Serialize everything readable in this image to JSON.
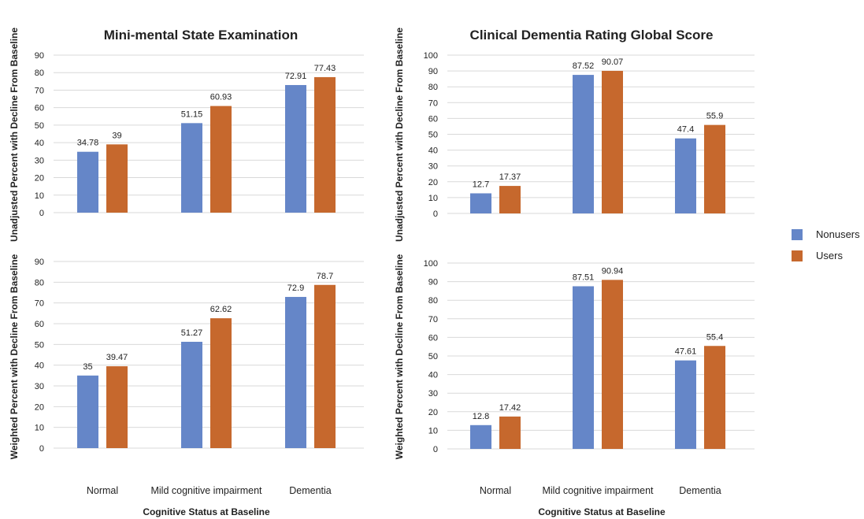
{
  "colors": {
    "nonusers": "#6586c8",
    "users": "#c6682d"
  },
  "legend": [
    {
      "key": "nonusers",
      "label": "Nonusers"
    },
    {
      "key": "users",
      "label": "Users"
    }
  ],
  "columns": [
    {
      "title": "Mini-mental State Examination",
      "xlabel": "Cognitive Status at Baseline"
    },
    {
      "title": "Clinical Dementia Rating Global Score",
      "xlabel": "Cognitive Status at Baseline"
    }
  ],
  "chart_data": [
    {
      "type": "bar",
      "title": "Mini-mental State Examination",
      "ylabel": "Unadjusted Percent with Decline From Baseline",
      "xlabel": "",
      "categories": [
        "Normal",
        "Mild cognitive impairment",
        "Dementia"
      ],
      "ylim": [
        0,
        90
      ],
      "ytick_step": 10,
      "grid": true,
      "series": [
        {
          "name": "Nonusers",
          "values": [
            34.78,
            51.15,
            72.91
          ]
        },
        {
          "name": "Users",
          "values": [
            39,
            60.93,
            77.43
          ]
        }
      ]
    },
    {
      "type": "bar",
      "title": "Clinical Dementia Rating Global Score",
      "ylabel": "Unadjusted Percent with Decline From Baseline",
      "xlabel": "",
      "categories": [
        "Normal",
        "Mild cognitive impairment",
        "Dementia"
      ],
      "ylim": [
        0,
        100
      ],
      "ytick_step": 10,
      "grid": true,
      "series": [
        {
          "name": "Nonusers",
          "values": [
            12.7,
            87.52,
            47.4
          ]
        },
        {
          "name": "Users",
          "values": [
            17.37,
            90.07,
            55.9
          ]
        }
      ]
    },
    {
      "type": "bar",
      "title": "",
      "ylabel": "Weighted  Percent with Decline From Baseline",
      "xlabel": "Cognitive Status at Baseline",
      "categories": [
        "Normal",
        "Mild cognitive impairment",
        "Dementia"
      ],
      "ylim": [
        0,
        90
      ],
      "ytick_step": 10,
      "grid": true,
      "series": [
        {
          "name": "Nonusers",
          "values": [
            35,
            51.27,
            72.9
          ]
        },
        {
          "name": "Users",
          "values": [
            39.47,
            62.62,
            78.7
          ]
        }
      ]
    },
    {
      "type": "bar",
      "title": "",
      "ylabel": "Weighted  Percent with Decline From Baseline",
      "xlabel": "Cognitive Status at Baseline",
      "categories": [
        "Normal",
        "Mild cognitive impairment",
        "Dementia"
      ],
      "ylim": [
        0,
        100
      ],
      "ytick_step": 10,
      "grid": true,
      "series": [
        {
          "name": "Nonusers",
          "values": [
            12.8,
            87.51,
            47.61
          ]
        },
        {
          "name": "Users",
          "values": [
            17.42,
            90.94,
            55.4
          ]
        }
      ]
    }
  ]
}
